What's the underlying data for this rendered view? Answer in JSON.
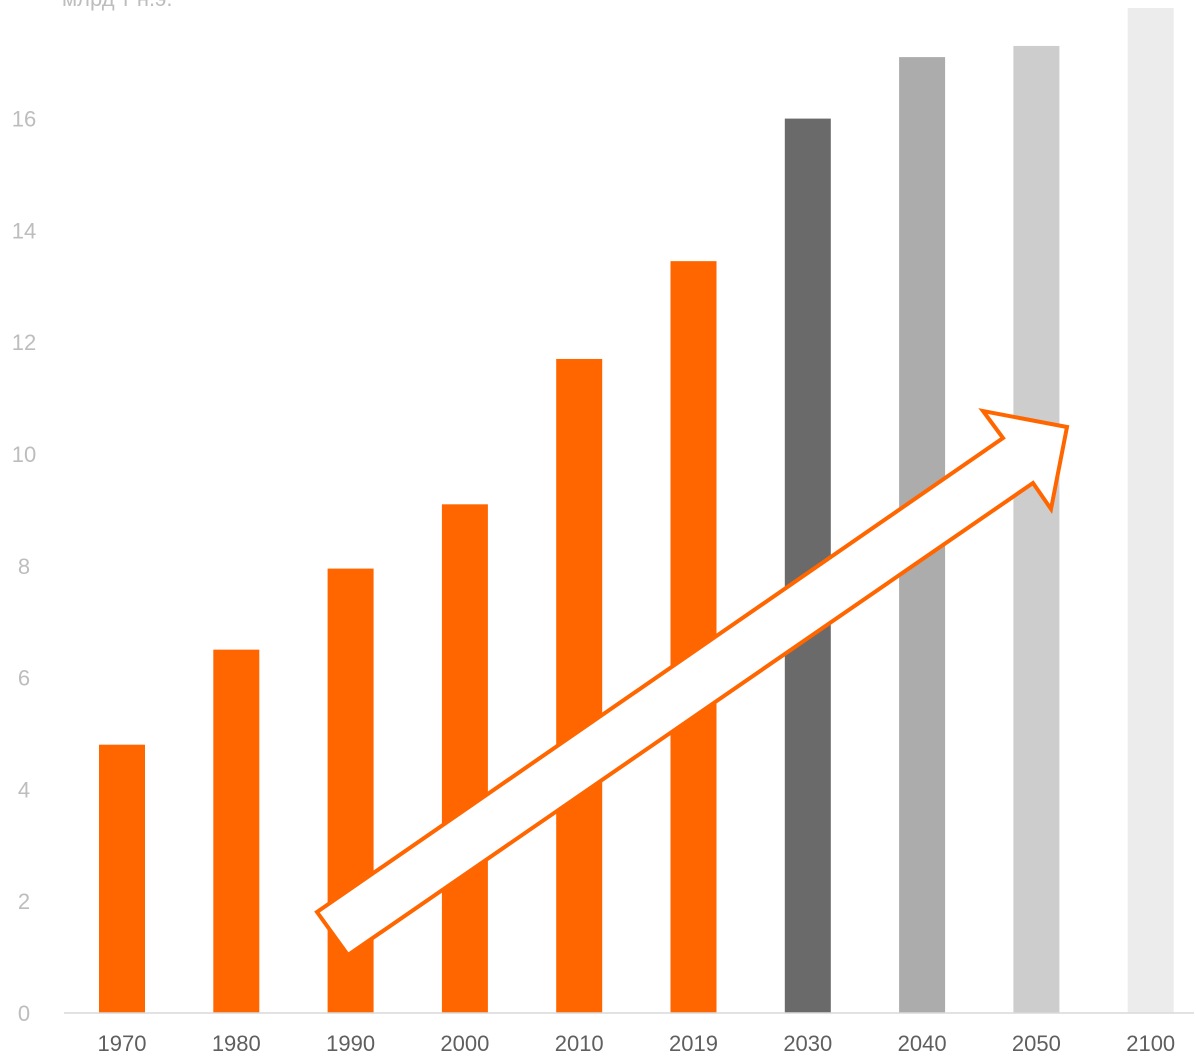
{
  "chart_data": {
    "type": "bar",
    "ylabel": "млрд т н.э.",
    "categories": [
      "1970",
      "1980",
      "1990",
      "2000",
      "2010",
      "2019",
      "2030",
      "2040",
      "2050",
      "2100"
    ],
    "values": [
      4.8,
      6.5,
      7.95,
      9.1,
      11.7,
      13.45,
      16.0,
      17.1,
      17.3,
      18.0
    ],
    "bar_colors": [
      "#ff6600",
      "#ff6600",
      "#ff6600",
      "#ff6600",
      "#ff6600",
      "#ff6600",
      "#6a6a6a",
      "#acacac",
      "#cdcdcd",
      "#ececec"
    ],
    "yticks": [
      0,
      2,
      4,
      6,
      8,
      10,
      12,
      14,
      16
    ],
    "ylim": [
      0,
      18
    ],
    "grid": false,
    "legend": "none",
    "annotation": {
      "type": "arrow",
      "direction": "up-right",
      "fill": "#ffffff",
      "stroke": "#ff6600"
    }
  }
}
